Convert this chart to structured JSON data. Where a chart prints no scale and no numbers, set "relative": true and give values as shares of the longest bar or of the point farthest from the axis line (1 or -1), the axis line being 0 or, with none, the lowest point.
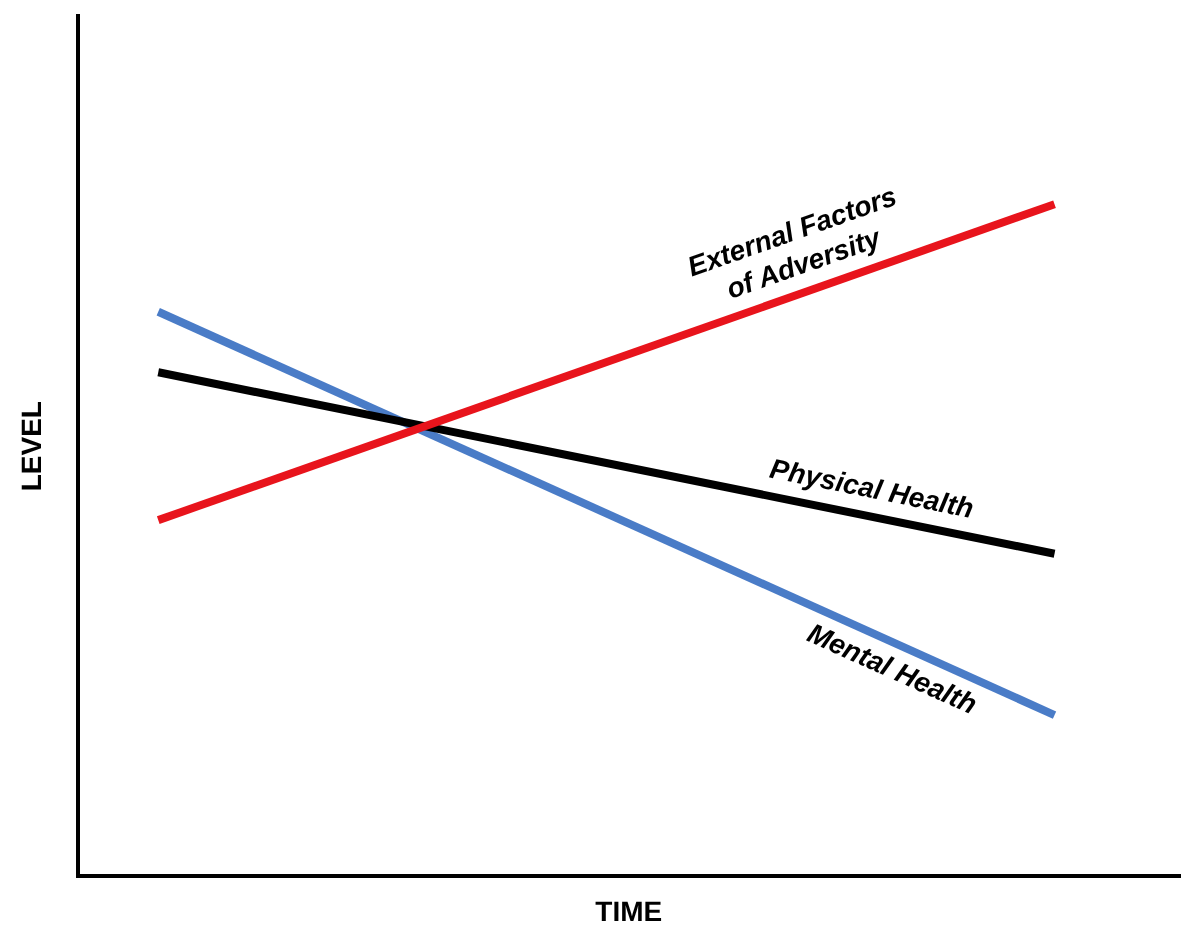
{
  "chart_data": {
    "type": "line",
    "relative": true,
    "xlabel": "TIME",
    "ylabel": "LEVEL",
    "categories": [
      null,
      null
    ],
    "grid": false,
    "legend": false,
    "marker": "none",
    "line_style": "solid",
    "series": [
      {
        "name": "External Factors of Adversity",
        "color": "#e8141c",
        "values": [
          0.53,
          1
        ]
      },
      {
        "name": "Physical Health",
        "color": "#000000",
        "values": [
          0.75,
          0.48
        ]
      },
      {
        "name": "Mental Health",
        "color": "#4a7cc7",
        "values": [
          0.84,
          0.24
        ]
      }
    ]
  }
}
